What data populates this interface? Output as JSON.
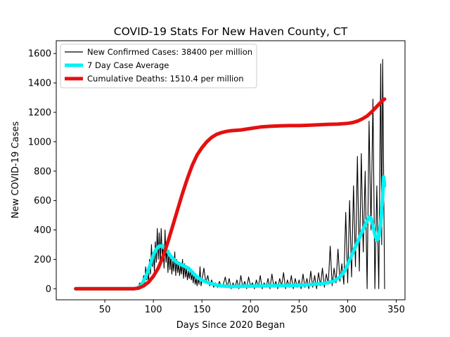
{
  "chart_data": {
    "type": "line",
    "title": "COVID-19 Stats For New Haven County, CT",
    "xlabel": "Days Since 2020 Began",
    "ylabel": "New COVID-19 Cases",
    "xlim": [
      0,
      359
    ],
    "ylim": [
      -75,
      1687
    ],
    "xticks": [
      50,
      100,
      150,
      200,
      250,
      300,
      350
    ],
    "yticks": [
      0,
      200,
      400,
      600,
      800,
      1000,
      1200,
      1400,
      1600
    ],
    "grid": false,
    "legend_position": "top-left",
    "series": [
      {
        "name": "New Confirmed Cases: 38400 per million",
        "color": "#000000",
        "style": "thin",
        "points": [
          [
            20,
            0
          ],
          [
            60,
            0
          ],
          [
            80,
            0
          ],
          [
            84,
            10
          ],
          [
            86,
            40
          ],
          [
            88,
            20
          ],
          [
            90,
            90
          ],
          [
            91,
            30
          ],
          [
            92,
            150
          ],
          [
            93,
            60
          ],
          [
            94,
            110
          ],
          [
            95,
            40
          ],
          [
            96,
            200
          ],
          [
            97,
            100
          ],
          [
            98,
            300
          ],
          [
            99,
            150
          ],
          [
            100,
            250
          ],
          [
            101,
            120
          ],
          [
            102,
            320
          ],
          [
            103,
            180
          ],
          [
            104,
            410
          ],
          [
            105,
            200
          ],
          [
            106,
            380
          ],
          [
            107,
            160
          ],
          [
            108,
            410
          ],
          [
            109,
            230
          ],
          [
            110,
            300
          ],
          [
            111,
            140
          ],
          [
            112,
            400
          ],
          [
            113,
            180
          ],
          [
            114,
            280
          ],
          [
            115,
            110
          ],
          [
            116,
            260
          ],
          [
            117,
            130
          ],
          [
            118,
            220
          ],
          [
            119,
            100
          ],
          [
            120,
            190
          ],
          [
            121,
            120
          ],
          [
            122,
            250
          ],
          [
            123,
            90
          ],
          [
            124,
            200
          ],
          [
            125,
            110
          ],
          [
            126,
            170
          ],
          [
            127,
            90
          ],
          [
            128,
            160
          ],
          [
            129,
            100
          ],
          [
            130,
            200
          ],
          [
            131,
            70
          ],
          [
            132,
            170
          ],
          [
            133,
            80
          ],
          [
            134,
            140
          ],
          [
            135,
            60
          ],
          [
            136,
            120
          ],
          [
            137,
            70
          ],
          [
            138,
            130
          ],
          [
            139,
            60
          ],
          [
            140,
            100
          ],
          [
            141,
            40
          ],
          [
            142,
            110
          ],
          [
            143,
            30
          ],
          [
            144,
            70
          ],
          [
            145,
            20
          ],
          [
            146,
            80
          ],
          [
            147,
            30
          ],
          [
            148,
            150
          ],
          [
            149,
            20
          ],
          [
            150,
            60
          ],
          [
            152,
            140
          ],
          [
            154,
            40
          ],
          [
            156,
            90
          ],
          [
            158,
            20
          ],
          [
            160,
            60
          ],
          [
            162,
            10
          ],
          [
            164,
            40
          ],
          [
            166,
            10
          ],
          [
            168,
            50
          ],
          [
            170,
            10
          ],
          [
            172,
            30
          ],
          [
            174,
            80
          ],
          [
            176,
            10
          ],
          [
            178,
            70
          ],
          [
            180,
            0
          ],
          [
            182,
            40
          ],
          [
            184,
            10
          ],
          [
            186,
            60
          ],
          [
            188,
            0
          ],
          [
            190,
            90
          ],
          [
            192,
            10
          ],
          [
            194,
            50
          ],
          [
            196,
            0
          ],
          [
            198,
            80
          ],
          [
            200,
            20
          ],
          [
            202,
            40
          ],
          [
            204,
            0
          ],
          [
            206,
            60
          ],
          [
            208,
            10
          ],
          [
            210,
            90
          ],
          [
            212,
            0
          ],
          [
            214,
            40
          ],
          [
            216,
            10
          ],
          [
            218,
            70
          ],
          [
            220,
            0
          ],
          [
            222,
            100
          ],
          [
            224,
            10
          ],
          [
            226,
            50
          ],
          [
            228,
            0
          ],
          [
            230,
            70
          ],
          [
            232,
            20
          ],
          [
            234,
            110
          ],
          [
            236,
            0
          ],
          [
            238,
            60
          ],
          [
            240,
            10
          ],
          [
            242,
            90
          ],
          [
            244,
            0
          ],
          [
            246,
            70
          ],
          [
            248,
            10
          ],
          [
            250,
            60
          ],
          [
            252,
            0
          ],
          [
            254,
            100
          ],
          [
            256,
            10
          ],
          [
            258,
            70
          ],
          [
            260,
            0
          ],
          [
            262,
            120
          ],
          [
            264,
            10
          ],
          [
            266,
            90
          ],
          [
            268,
            0
          ],
          [
            270,
            110
          ],
          [
            272,
            20
          ],
          [
            274,
            140
          ],
          [
            276,
            10
          ],
          [
            278,
            100
          ],
          [
            280,
            30
          ],
          [
            282,
            290
          ],
          [
            284,
            20
          ],
          [
            286,
            140
          ],
          [
            288,
            40
          ],
          [
            290,
            270
          ],
          [
            292,
            50
          ],
          [
            294,
            170
          ],
          [
            296,
            30
          ],
          [
            298,
            520
          ],
          [
            300,
            40
          ],
          [
            302,
            600
          ],
          [
            304,
            80
          ],
          [
            306,
            700
          ],
          [
            308,
            150
          ],
          [
            310,
            900
          ],
          [
            312,
            120
          ],
          [
            314,
            920
          ],
          [
            316,
            250
          ],
          [
            318,
            800
          ],
          [
            320,
            0
          ],
          [
            322,
            1140
          ],
          [
            324,
            400
          ],
          [
            326,
            1290
          ],
          [
            328,
            0
          ],
          [
            330,
            700
          ],
          [
            332,
            0
          ],
          [
            334,
            1530
          ],
          [
            335,
            300
          ],
          [
            336,
            1560
          ],
          [
            338,
            0
          ]
        ]
      },
      {
        "name": "7 Day Case Average",
        "color": "#00f2f2",
        "style": "thick",
        "points": [
          [
            20,
            0
          ],
          [
            80,
            0
          ],
          [
            84,
            5
          ],
          [
            88,
            30
          ],
          [
            92,
            80
          ],
          [
            96,
            150
          ],
          [
            100,
            230
          ],
          [
            103,
            270
          ],
          [
            106,
            290
          ],
          [
            109,
            290
          ],
          [
            112,
            270
          ],
          [
            115,
            250
          ],
          [
            118,
            220
          ],
          [
            121,
            200
          ],
          [
            124,
            180
          ],
          [
            127,
            170
          ],
          [
            130,
            160
          ],
          [
            133,
            150
          ],
          [
            136,
            140
          ],
          [
            139,
            120
          ],
          [
            142,
            100
          ],
          [
            145,
            80
          ],
          [
            148,
            65
          ],
          [
            151,
            55
          ],
          [
            155,
            45
          ],
          [
            160,
            35
          ],
          [
            165,
            25
          ],
          [
            170,
            20
          ],
          [
            180,
            15
          ],
          [
            200,
            18
          ],
          [
            220,
            20
          ],
          [
            240,
            22
          ],
          [
            255,
            25
          ],
          [
            265,
            30
          ],
          [
            275,
            35
          ],
          [
            285,
            50
          ],
          [
            292,
            80
          ],
          [
            297,
            120
          ],
          [
            301,
            180
          ],
          [
            305,
            240
          ],
          [
            309,
            300
          ],
          [
            313,
            360
          ],
          [
            317,
            420
          ],
          [
            320,
            460
          ],
          [
            322,
            490
          ],
          [
            324,
            480
          ],
          [
            326,
            430
          ],
          [
            328,
            370
          ],
          [
            330,
            330
          ],
          [
            332,
            350
          ],
          [
            334,
            450
          ],
          [
            336,
            620
          ],
          [
            337,
            760
          ],
          [
            338,
            700
          ]
        ]
      },
      {
        "name": "Cumulative Deaths: 1510.4 per million",
        "color": "#e41010",
        "style": "thick",
        "points": [
          [
            20,
            0
          ],
          [
            80,
            0
          ],
          [
            85,
            5
          ],
          [
            90,
            20
          ],
          [
            95,
            45
          ],
          [
            100,
            85
          ],
          [
            105,
            140
          ],
          [
            110,
            220
          ],
          [
            115,
            320
          ],
          [
            120,
            430
          ],
          [
            125,
            540
          ],
          [
            130,
            650
          ],
          [
            135,
            750
          ],
          [
            140,
            840
          ],
          [
            145,
            910
          ],
          [
            150,
            960
          ],
          [
            155,
            1000
          ],
          [
            160,
            1030
          ],
          [
            165,
            1050
          ],
          [
            170,
            1062
          ],
          [
            175,
            1070
          ],
          [
            180,
            1075
          ],
          [
            190,
            1080
          ],
          [
            200,
            1090
          ],
          [
            210,
            1100
          ],
          [
            220,
            1105
          ],
          [
            230,
            1108
          ],
          [
            240,
            1110
          ],
          [
            250,
            1110
          ],
          [
            260,
            1112
          ],
          [
            270,
            1115
          ],
          [
            280,
            1118
          ],
          [
            290,
            1120
          ],
          [
            300,
            1125
          ],
          [
            305,
            1130
          ],
          [
            310,
            1140
          ],
          [
            315,
            1155
          ],
          [
            320,
            1175
          ],
          [
            325,
            1205
          ],
          [
            330,
            1240
          ],
          [
            335,
            1275
          ],
          [
            338,
            1290
          ]
        ]
      }
    ]
  }
}
